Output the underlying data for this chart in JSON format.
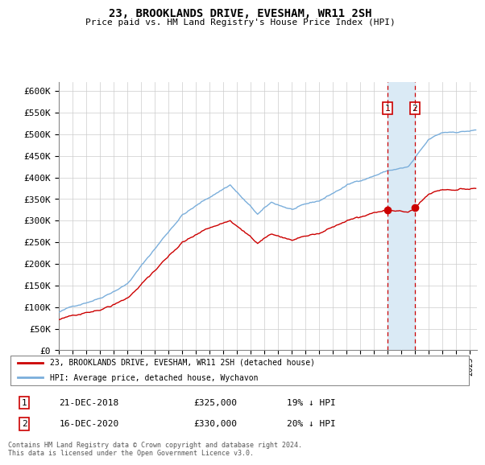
{
  "title": "23, BROOKLANDS DRIVE, EVESHAM, WR11 2SH",
  "subtitle": "Price paid vs. HM Land Registry's House Price Index (HPI)",
  "legend_line1": "23, BROOKLANDS DRIVE, EVESHAM, WR11 2SH (detached house)",
  "legend_line2": "HPI: Average price, detached house, Wychavon",
  "footer": "Contains HM Land Registry data © Crown copyright and database right 2024.\nThis data is licensed under the Open Government Licence v3.0.",
  "sale1_label": "1",
  "sale1_date": "21-DEC-2018",
  "sale1_price": "£325,000",
  "sale1_hpi": "19% ↓ HPI",
  "sale2_label": "2",
  "sale2_date": "16-DEC-2020",
  "sale2_price": "£330,000",
  "sale2_hpi": "20% ↓ HPI",
  "hpi_color": "#7aaedb",
  "sale_color": "#cc0000",
  "marker_color": "#cc0000",
  "dashed_color": "#cc0000",
  "shaded_color": "#daeaf5",
  "ylim": [
    0,
    620000
  ],
  "yticks": [
    0,
    50000,
    100000,
    150000,
    200000,
    250000,
    300000,
    350000,
    400000,
    450000,
    500000,
    550000,
    600000
  ],
  "background_color": "#ffffff",
  "grid_color": "#cccccc",
  "sale1_year": 2018.96,
  "sale2_year": 2020.96,
  "sale1_price_val": 325000,
  "sale2_price_val": 330000
}
